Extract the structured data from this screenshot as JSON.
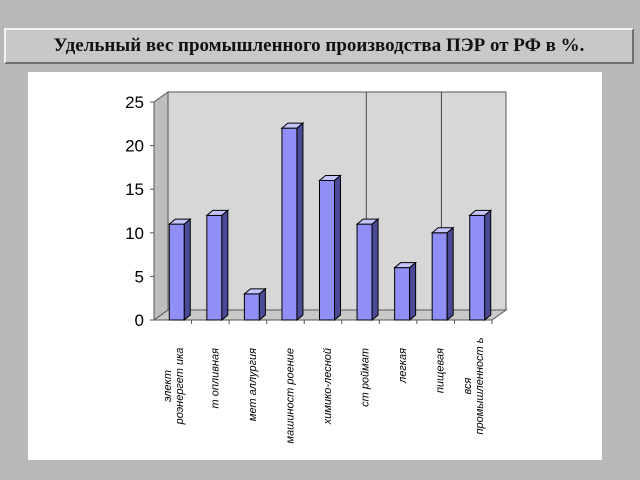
{
  "header": {
    "title": "Удельный вес промышленного производства ПЭР от РФ в %."
  },
  "colors": {
    "bar_front": "#8f8ff5",
    "bar_top": "#c4c4ff",
    "bar_side": "#4a4a96",
    "wall": "#d7d7d7",
    "floor": "#c9c9c9",
    "page_background": "#b8b8b8",
    "panel_background": "#ffffff"
  },
  "chart_data": {
    "type": "bar",
    "three_d": true,
    "title": "",
    "xlabel": "",
    "ylabel": "",
    "ylim": [
      0,
      25
    ],
    "yticks": [
      0,
      5,
      10,
      15,
      20,
      25
    ],
    "grid": false,
    "legend": "none",
    "categories": [
      "элект роэнергет ика",
      "т опливная",
      "мет аллургия",
      "машиност роение",
      "химико-лесной",
      "ст роймат",
      "легкая",
      "пищевая",
      "вся промышленност ь"
    ],
    "values": [
      11,
      12,
      3,
      22,
      16,
      11,
      6,
      10,
      12
    ]
  }
}
